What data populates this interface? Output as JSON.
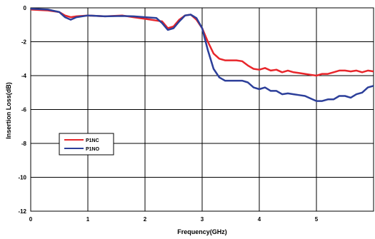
{
  "chart_data": {
    "type": "line",
    "title": "",
    "xlabel": "Frequency(GHz)",
    "ylabel": "Insertion Loss(dB)",
    "xlim": [
      0,
      6
    ],
    "ylim": [
      -12,
      0
    ],
    "x_ticks": [
      0,
      1,
      2,
      3,
      4,
      5
    ],
    "y_ticks": [
      0,
      -2,
      -4,
      -6,
      -8,
      -10,
      -12
    ],
    "grid": true,
    "legend_position": "left",
    "series": [
      {
        "name": "P1NC",
        "color": "#e8262b",
        "points": [
          [
            0.0,
            -0.1
          ],
          [
            0.3,
            -0.15
          ],
          [
            0.5,
            -0.25
          ],
          [
            0.6,
            -0.45
          ],
          [
            0.7,
            -0.55
          ],
          [
            0.8,
            -0.5
          ],
          [
            1.0,
            -0.45
          ],
          [
            1.3,
            -0.5
          ],
          [
            1.6,
            -0.45
          ],
          [
            1.8,
            -0.55
          ],
          [
            2.0,
            -0.65
          ],
          [
            2.2,
            -0.75
          ],
          [
            2.3,
            -0.8
          ],
          [
            2.4,
            -1.2
          ],
          [
            2.5,
            -1.1
          ],
          [
            2.6,
            -0.7
          ],
          [
            2.7,
            -0.45
          ],
          [
            2.8,
            -0.4
          ],
          [
            2.9,
            -0.7
          ],
          [
            3.0,
            -1.2
          ],
          [
            3.1,
            -2.0
          ],
          [
            3.2,
            -2.7
          ],
          [
            3.3,
            -3.0
          ],
          [
            3.4,
            -3.1
          ],
          [
            3.5,
            -3.1
          ],
          [
            3.6,
            -3.1
          ],
          [
            3.7,
            -3.15
          ],
          [
            3.8,
            -3.4
          ],
          [
            3.9,
            -3.6
          ],
          [
            4.0,
            -3.65
          ],
          [
            4.1,
            -3.55
          ],
          [
            4.2,
            -3.7
          ],
          [
            4.3,
            -3.65
          ],
          [
            4.4,
            -3.8
          ],
          [
            4.5,
            -3.7
          ],
          [
            4.6,
            -3.8
          ],
          [
            4.7,
            -3.85
          ],
          [
            4.8,
            -3.9
          ],
          [
            4.9,
            -3.95
          ],
          [
            5.0,
            -4.0
          ],
          [
            5.1,
            -3.9
          ],
          [
            5.2,
            -3.9
          ],
          [
            5.3,
            -3.8
          ],
          [
            5.4,
            -3.7
          ],
          [
            5.5,
            -3.7
          ],
          [
            5.6,
            -3.75
          ],
          [
            5.7,
            -3.7
          ],
          [
            5.8,
            -3.8
          ],
          [
            5.9,
            -3.7
          ],
          [
            6.0,
            -3.75
          ]
        ]
      },
      {
        "name": "P1NO",
        "color": "#2c3f9a",
        "points": [
          [
            0.0,
            -0.05
          ],
          [
            0.3,
            -0.1
          ],
          [
            0.5,
            -0.25
          ],
          [
            0.6,
            -0.55
          ],
          [
            0.7,
            -0.7
          ],
          [
            0.8,
            -0.55
          ],
          [
            1.0,
            -0.45
          ],
          [
            1.3,
            -0.5
          ],
          [
            1.6,
            -0.48
          ],
          [
            1.8,
            -0.5
          ],
          [
            2.0,
            -0.55
          ],
          [
            2.2,
            -0.6
          ],
          [
            2.3,
            -0.9
          ],
          [
            2.4,
            -1.3
          ],
          [
            2.5,
            -1.2
          ],
          [
            2.6,
            -0.8
          ],
          [
            2.7,
            -0.45
          ],
          [
            2.8,
            -0.4
          ],
          [
            2.9,
            -0.6
          ],
          [
            3.0,
            -1.2
          ],
          [
            3.1,
            -2.5
          ],
          [
            3.2,
            -3.6
          ],
          [
            3.3,
            -4.1
          ],
          [
            3.4,
            -4.3
          ],
          [
            3.5,
            -4.3
          ],
          [
            3.6,
            -4.3
          ],
          [
            3.7,
            -4.3
          ],
          [
            3.8,
            -4.4
          ],
          [
            3.9,
            -4.7
          ],
          [
            4.0,
            -4.8
          ],
          [
            4.1,
            -4.7
          ],
          [
            4.2,
            -4.9
          ],
          [
            4.3,
            -4.9
          ],
          [
            4.4,
            -5.1
          ],
          [
            4.5,
            -5.05
          ],
          [
            4.6,
            -5.1
          ],
          [
            4.7,
            -5.15
          ],
          [
            4.8,
            -5.2
          ],
          [
            4.9,
            -5.35
          ],
          [
            5.0,
            -5.5
          ],
          [
            5.1,
            -5.5
          ],
          [
            5.2,
            -5.4
          ],
          [
            5.3,
            -5.4
          ],
          [
            5.4,
            -5.2
          ],
          [
            5.5,
            -5.2
          ],
          [
            5.6,
            -5.3
          ],
          [
            5.7,
            -5.1
          ],
          [
            5.8,
            -5.0
          ],
          [
            5.9,
            -4.7
          ],
          [
            6.0,
            -4.6
          ]
        ]
      }
    ]
  }
}
